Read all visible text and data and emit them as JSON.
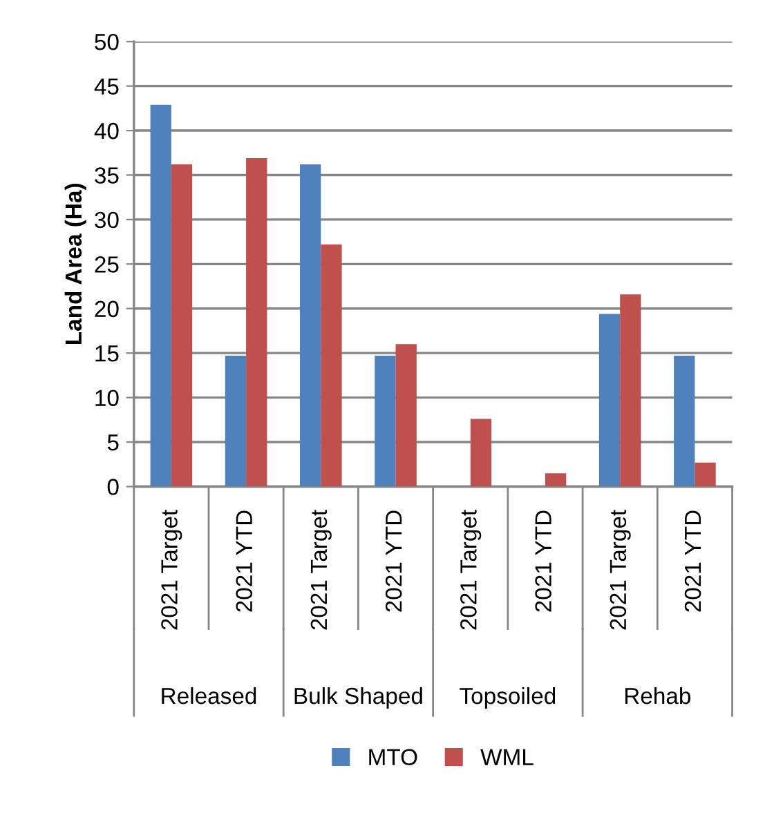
{
  "chart_data": {
    "type": "bar",
    "ylabel": "Land Area (Ha)",
    "categories": [
      "2021 Target",
      "2021 YTD",
      "2021 Target",
      "2021 YTD",
      "2021 Target",
      "2021 YTD",
      "2021 Target",
      "2021 YTD"
    ],
    "series": [
      {
        "name": "MTO",
        "color": "#4f81bd",
        "values": [
          42.9,
          14.7,
          36.2,
          14.7,
          0,
          0,
          19.4,
          14.7
        ]
      },
      {
        "name": "WML",
        "color": "#c0504d",
        "values": [
          36.2,
          36.9,
          27.2,
          16.0,
          7.6,
          1.5,
          21.6,
          2.7
        ]
      }
    ],
    "annotations": [
      "Released",
      "Bulk Shaped",
      "Topsoiled",
      "Rehab"
    ],
    "ylim": [
      0,
      50
    ],
    "yticks": [
      0,
      5,
      10,
      15,
      20,
      25,
      30,
      35,
      40,
      45,
      50
    ],
    "grid": "y",
    "legend": "bottom"
  }
}
